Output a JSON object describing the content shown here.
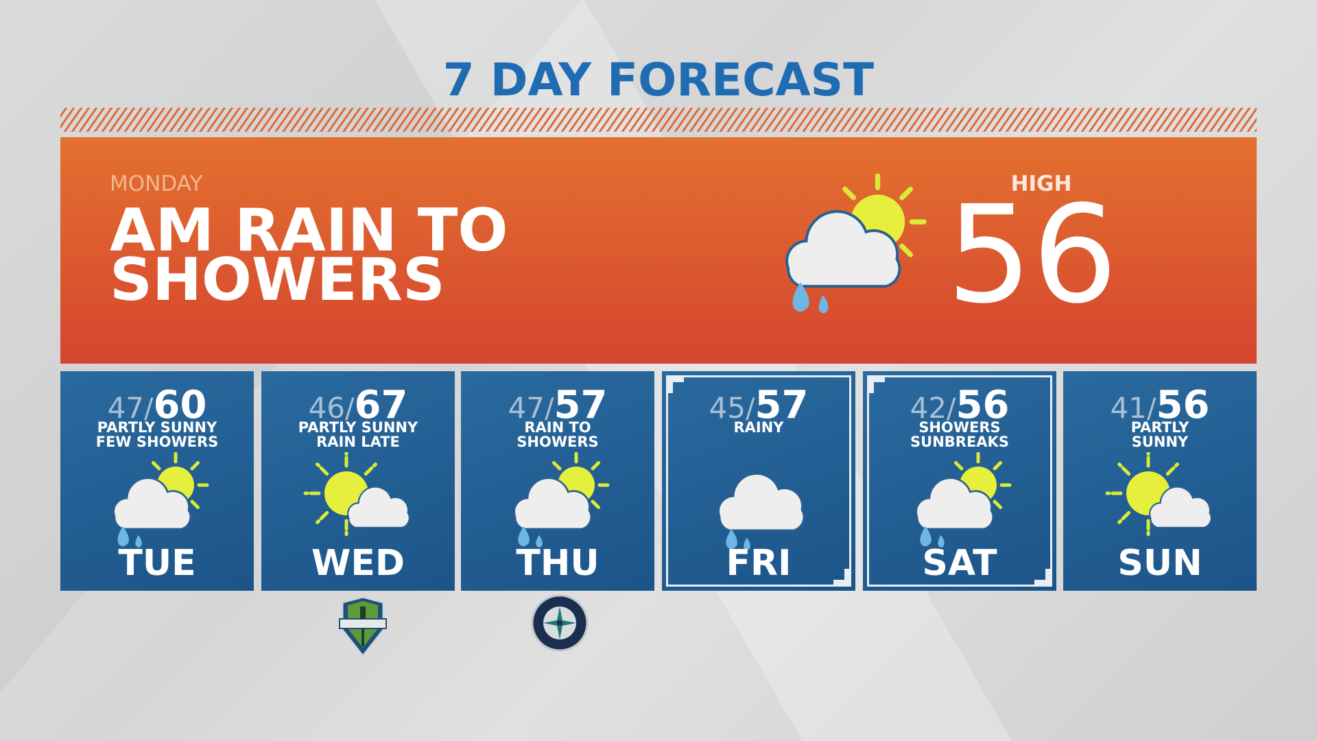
{
  "title": "7 DAY FORECAST",
  "today": {
    "day": "MONDAY",
    "summary_line1": "AM RAIN TO",
    "summary_line2": "SHOWERS",
    "high_label": "HIGH",
    "high": "56",
    "icon": "rain-showers-sun-icon"
  },
  "days": [
    {
      "day": "TUE",
      "low": "47",
      "high": "60",
      "desc1": "PARTLY SUNNY",
      "desc2": "FEW SHOWERS",
      "icon": "showers-sun",
      "framed": false
    },
    {
      "day": "WED",
      "low": "46",
      "high": "67",
      "desc1": "PARTLY SUNNY",
      "desc2": "RAIN LATE",
      "icon": "partly-sunny",
      "framed": false
    },
    {
      "day": "THU",
      "low": "47",
      "high": "57",
      "desc1": "RAIN TO",
      "desc2": "SHOWERS",
      "icon": "showers-sun",
      "framed": false
    },
    {
      "day": "FRI",
      "low": "45",
      "high": "57",
      "desc1": "RAINY",
      "desc2": "",
      "icon": "rain",
      "framed": true
    },
    {
      "day": "SAT",
      "low": "42",
      "high": "56",
      "desc1": "SHOWERS",
      "desc2": "SUNBREAKS",
      "icon": "showers-sun",
      "framed": true
    },
    {
      "day": "SUN",
      "low": "41",
      "high": "56",
      "desc1": "PARTLY",
      "desc2": "SUNNY",
      "icon": "partly-sunny",
      "framed": false
    }
  ],
  "logos": [
    {
      "name": "SEATTLE SOUNDERS FC",
      "under": "WED"
    },
    {
      "name": "SEATTLE MARINERS",
      "under": "THU"
    }
  ],
  "colors": {
    "title": "#1f6cb2",
    "today_panel": "#e3712f",
    "card": "#1f5a8e",
    "sun": "#e6f03c",
    "cloud": "#eeeeee",
    "rain": "#6fb6e6"
  }
}
